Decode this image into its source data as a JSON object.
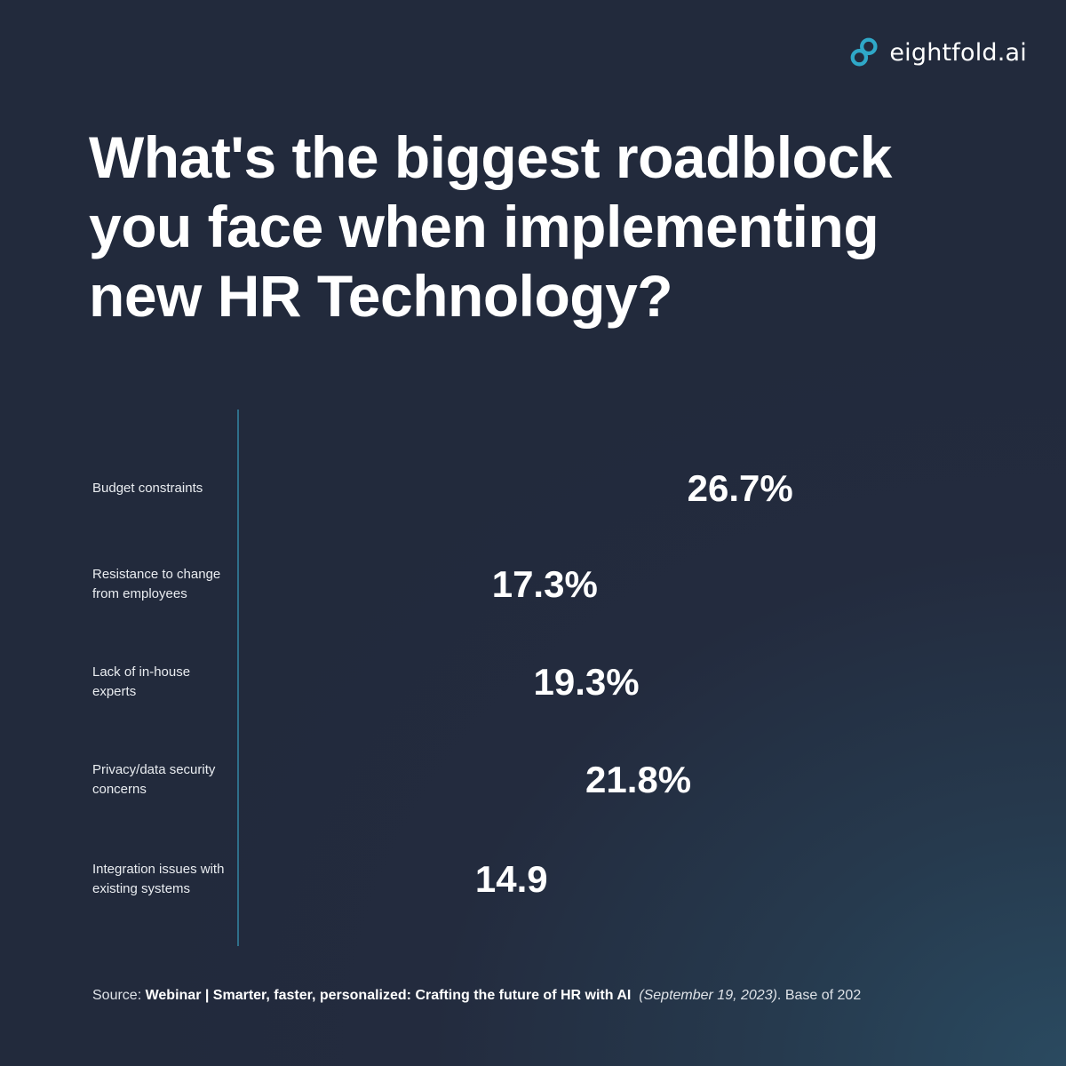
{
  "brand": {
    "name": "eightfold.ai",
    "icon": "eightfold-logo-icon",
    "accent": "#2fa8c8"
  },
  "title": "What's the biggest roadblock you face when implementing new HR Technology?",
  "chart_data": {
    "type": "bar",
    "orientation": "horizontal",
    "categories": [
      "Budget constraints",
      "Resistance to change from employees",
      "Lack of in-house experts",
      "Privacy/data security concerns",
      "Integration issues with existing systems"
    ],
    "values": [
      26.7,
      17.3,
      19.3,
      21.8,
      14.9
    ],
    "data_labels": [
      "26.7%",
      "17.3%",
      "19.3%",
      "21.8%",
      "14.9"
    ],
    "bar_color": "transparent",
    "axis_line_color": "#2f6f8a",
    "grid": false
  },
  "source": {
    "prefix": "Source: ",
    "bold": "Webinar | Smarter, faster, personalized: Crafting the future of HR with AI",
    "italic": "(September 19, 2023)",
    "suffix": ". Base of 202"
  }
}
